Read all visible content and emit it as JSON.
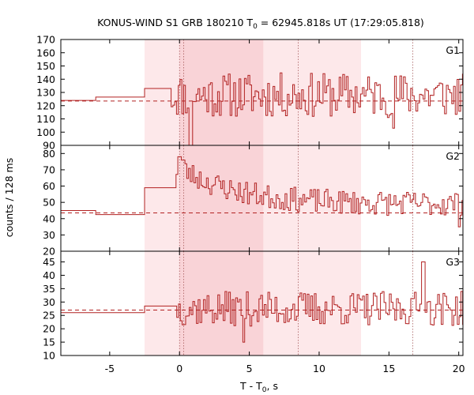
{
  "chart_data": {
    "type": "line",
    "title_main": "KONUS-WIND S1 GRB 180210 T",
    "title_sub": "0",
    "title_rest": " = 62945.818s UT (17:29:05.818)",
    "xlabel_main": "T - T",
    "xlabel_sub": "0",
    "xlabel_rest": ", s",
    "ylabel": "counts / 128 ms",
    "xlim": [
      -8.5,
      20.3
    ],
    "x_ticks": [
      -5,
      0,
      5,
      10,
      15,
      20
    ],
    "shaded_regions": [
      {
        "x0": -2.5,
        "x1": 13.0,
        "level": "light"
      },
      {
        "x0": 0.0,
        "x1": 6.0,
        "level": "dark"
      }
    ],
    "vlines": [
      0.0,
      0.3,
      8.5,
      16.7
    ],
    "line_color": "#b22222",
    "shade_light": "#fde8ea",
    "shade_dark": "#f9d3d7",
    "panels": [
      {
        "name": "G1",
        "ylim": [
          90,
          170
        ],
        "y_ticks": [
          90,
          100,
          110,
          120,
          130,
          140,
          150,
          160,
          170
        ],
        "background": 123.5,
        "pre_steps": [
          [
            -8.5,
            124
          ],
          [
            -6.0,
            126.5
          ],
          [
            -2.5,
            133
          ],
          [
            -0.6,
            133
          ]
        ],
        "seed": 11,
        "base": 128.0,
        "decay": 0.0,
        "noise": 17.0,
        "bursts": [
          [
            0.7,
            10
          ]
        ],
        "spikes": [
          [
            15.3,
            -25
          ]
        ]
      },
      {
        "name": "G2",
        "ylim": [
          20,
          85
        ],
        "y_ticks": [
          20,
          30,
          40,
          50,
          60,
          70,
          80
        ],
        "background": 43.5,
        "pre_steps": [
          [
            -8.5,
            45
          ],
          [
            -6.0,
            42.5
          ],
          [
            -2.5,
            59
          ],
          [
            -0.25,
            60
          ]
        ],
        "seed": 23,
        "base": 49.0,
        "decay": 22.0,
        "noise": 7.5,
        "bursts": [
          [
            0.0,
            78
          ],
          [
            0.15,
            76
          ]
        ],
        "spikes": [
          [
            20.0,
            35
          ]
        ]
      },
      {
        "name": "G3",
        "ylim": [
          10,
          49
        ],
        "y_ticks": [
          10,
          15,
          20,
          25,
          30,
          35,
          40,
          45
        ],
        "background": 27.0,
        "pre_steps": [
          [
            -8.5,
            26
          ],
          [
            -2.5,
            28.5
          ],
          [
            -0.2,
            28.5
          ]
        ],
        "seed": 37,
        "base": 27.5,
        "decay": 0.0,
        "noise": 6.5,
        "bursts": [],
        "spikes": [
          [
            17.4,
            45
          ],
          [
            4.5,
            15
          ]
        ]
      }
    ]
  }
}
